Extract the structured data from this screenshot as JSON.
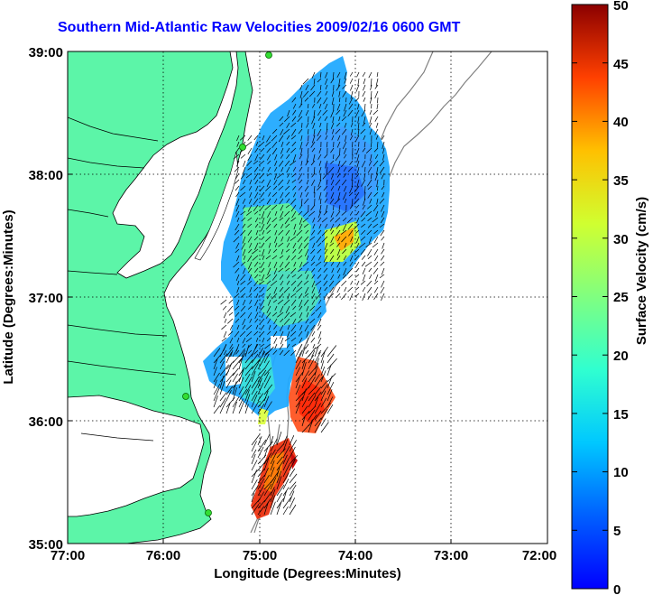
{
  "title": "Southern Mid-Atlantic Raw Velocities 2009/02/16 0600 GMT",
  "x_axis": {
    "label": "Longitude (Degrees:Minutes)",
    "ticks": [
      "77:00",
      "76:00",
      "75:00",
      "74:00",
      "73:00",
      "72:00"
    ]
  },
  "y_axis": {
    "label": "Latitude (Degrees:Minutes)",
    "ticks": [
      "39:00",
      "38:00",
      "37:00",
      "36:00",
      "35:00"
    ]
  },
  "colorbar": {
    "label": "Surface Velocity (cm/s)",
    "ticks": [
      "50",
      "45",
      "40",
      "35",
      "30",
      "25",
      "20",
      "15",
      "10",
      "5",
      "0"
    ],
    "range": [
      0,
      50
    ],
    "colormap": "jet"
  },
  "colors": {
    "land": "#5cf5a8",
    "title": "#0000ff",
    "bathymetry": "#808080",
    "station": "#33dd33"
  },
  "map_extent": {
    "lon": [
      -77,
      -72
    ],
    "lat": [
      35,
      39
    ]
  },
  "grid": true
}
